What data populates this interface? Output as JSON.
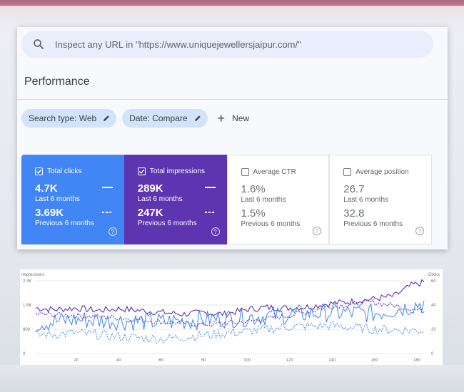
{
  "search": {
    "placeholder": "Inspect any URL in \"https://www.uniquejewellersjaipur.com/\""
  },
  "page_title": "Performance",
  "filters": [
    {
      "label": "Search type: Web"
    },
    {
      "label": "Date: Compare"
    }
  ],
  "new_label": "New",
  "metrics": [
    {
      "label": "Total clicks",
      "current": "4.7K",
      "current_label": "Last 6 months",
      "previous": "3.69K",
      "previous_label": "Previous 6 months",
      "checked": true,
      "color": "#4285f4"
    },
    {
      "label": "Total impressions",
      "current": "289K",
      "current_label": "Last 6 months",
      "previous": "247K",
      "previous_label": "Previous 6 months",
      "checked": true,
      "color": "#5e35b1"
    },
    {
      "label": "Average CTR",
      "current": "1.6%",
      "current_label": "Last 6 months",
      "previous": "1.5%",
      "previous_label": "Previous 6 months",
      "checked": false
    },
    {
      "label": "Average position",
      "current": "26.7",
      "current_label": "Last 6 months",
      "previous": "32.8",
      "previous_label": "Previous 6 months",
      "checked": false
    }
  ],
  "chart_data": {
    "type": "line",
    "ylabel_left": "Impressions",
    "ylabel_right": "Clicks",
    "left_ticks": [
      "2.4K",
      "1.6K",
      "800",
      "0"
    ],
    "right_ticks": [
      "60",
      "40",
      "20",
      "0"
    ],
    "x_ticks": [
      "20",
      "40",
      "60",
      "80",
      "100",
      "120",
      "140",
      "160",
      "180"
    ],
    "left_ylim": [
      0,
      2400
    ],
    "right_ylim": [
      0,
      60
    ],
    "xlim": [
      1,
      184
    ],
    "series": [
      {
        "name": "Total impressions",
        "axis": "left",
        "style": "solid",
        "color": "#5e35b1",
        "anchors": [
          [
            1,
            1500
          ],
          [
            10,
            1450
          ],
          [
            20,
            1500
          ],
          [
            30,
            1420
          ],
          [
            40,
            1480
          ],
          [
            50,
            1420
          ],
          [
            60,
            1360
          ],
          [
            70,
            1300
          ],
          [
            80,
            1350
          ],
          [
            90,
            1300
          ],
          [
            100,
            1450
          ],
          [
            110,
            1520
          ],
          [
            120,
            1500
          ],
          [
            130,
            1550
          ],
          [
            140,
            1650
          ],
          [
            150,
            1720
          ],
          [
            160,
            1800
          ],
          [
            170,
            1900
          ],
          [
            178,
            2250
          ],
          [
            184,
            2350
          ]
        ]
      },
      {
        "name": "Total impressions (previous)",
        "axis": "left",
        "style": "dashed",
        "color": "#5e35b1",
        "anchors": [
          [
            1,
            1300
          ],
          [
            20,
            1250
          ],
          [
            40,
            1180
          ],
          [
            60,
            1050
          ],
          [
            80,
            950
          ],
          [
            100,
            1050
          ],
          [
            120,
            1250
          ],
          [
            140,
            1550
          ],
          [
            160,
            1700
          ],
          [
            184,
            1400
          ]
        ]
      },
      {
        "name": "Total clicks",
        "axis": "right",
        "style": "solid",
        "color": "#4285f4",
        "anchors": [
          [
            1,
            25
          ],
          [
            20,
            28
          ],
          [
            40,
            27
          ],
          [
            60,
            26
          ],
          [
            80,
            28
          ],
          [
            100,
            30
          ],
          [
            120,
            32
          ],
          [
            140,
            34
          ],
          [
            160,
            33
          ],
          [
            175,
            38
          ],
          [
            184,
            42
          ]
        ]
      },
      {
        "name": "Total clicks (previous)",
        "axis": "right",
        "style": "dashed",
        "color": "#4285f4",
        "anchors": [
          [
            1,
            15
          ],
          [
            20,
            17
          ],
          [
            40,
            14
          ],
          [
            60,
            12
          ],
          [
            80,
            15
          ],
          [
            100,
            18
          ],
          [
            120,
            22
          ],
          [
            140,
            23
          ],
          [
            160,
            20
          ],
          [
            184,
            19
          ]
        ]
      }
    ]
  }
}
